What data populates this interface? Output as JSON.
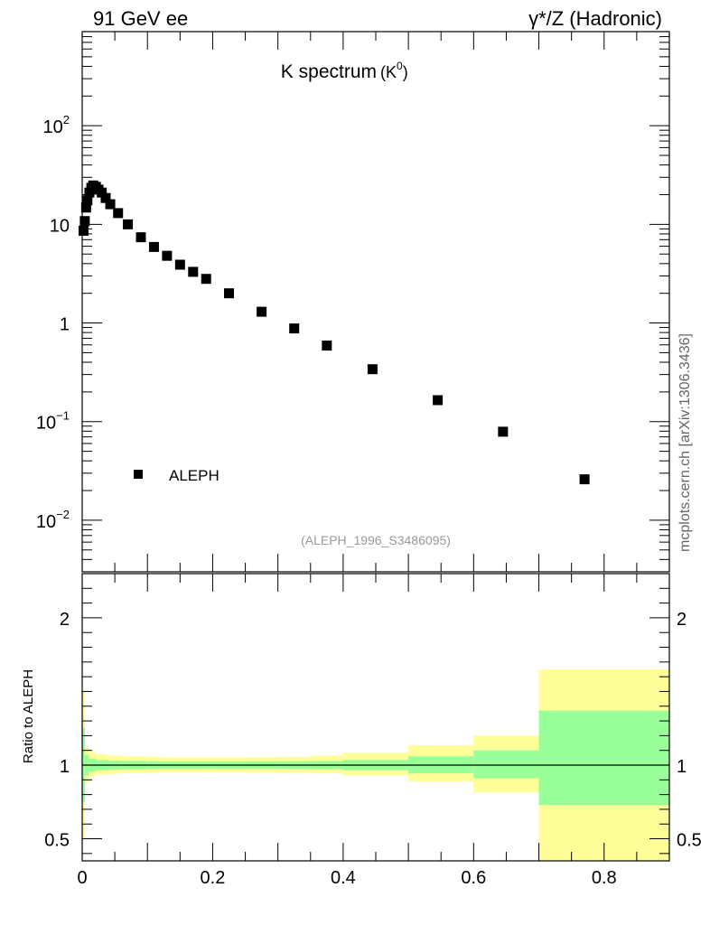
{
  "header": {
    "left": "91 GeV ee",
    "right": "γ*/Z (Hadronic)"
  },
  "side_label": "mcplots.cern.ch [arXiv:1306.3436]",
  "chart_data": [
    {
      "type": "scatter",
      "title": "K spectrum",
      "title_sub": "(K",
      "title_sup": "0",
      "title_close": ")",
      "yscale": "log",
      "xlim": [
        0,
        0.9
      ],
      "ylim": [
        0.003,
        900
      ],
      "yticks": [
        {
          "value": 0.01,
          "base": "10",
          "exp": "−2"
        },
        {
          "value": 0.1,
          "base": "10",
          "exp": "−1"
        },
        {
          "value": 1,
          "base": "1",
          "exp": ""
        },
        {
          "value": 10,
          "base": "10",
          "exp": ""
        },
        {
          "value": 100,
          "base": "10",
          "exp": "2"
        }
      ],
      "legend": {
        "label": "ALEPH",
        "position": "bottom-left"
      },
      "watermark": "(ALEPH_1996_S3486095)",
      "series": [
        {
          "name": "ALEPH",
          "marker": "square",
          "color": "#000000",
          "points": [
            {
              "x": 0.002,
              "y": 8.6
            },
            {
              "x": 0.004,
              "y": 10.8
            },
            {
              "x": 0.006,
              "y": 14.8
            },
            {
              "x": 0.008,
              "y": 17.5
            },
            {
              "x": 0.011,
              "y": 21.0
            },
            {
              "x": 0.014,
              "y": 23.5
            },
            {
              "x": 0.017,
              "y": 24.8
            },
            {
              "x": 0.021,
              "y": 24.0
            },
            {
              "x": 0.025,
              "y": 22.5
            },
            {
              "x": 0.03,
              "y": 21.0
            },
            {
              "x": 0.036,
              "y": 18.5
            },
            {
              "x": 0.043,
              "y": 16.0
            },
            {
              "x": 0.055,
              "y": 13.0
            },
            {
              "x": 0.07,
              "y": 10.0
            },
            {
              "x": 0.09,
              "y": 7.4
            },
            {
              "x": 0.11,
              "y": 5.9
            },
            {
              "x": 0.13,
              "y": 4.8
            },
            {
              "x": 0.15,
              "y": 3.9
            },
            {
              "x": 0.17,
              "y": 3.3
            },
            {
              "x": 0.19,
              "y": 2.8
            },
            {
              "x": 0.225,
              "y": 2.0
            },
            {
              "x": 0.275,
              "y": 1.3
            },
            {
              "x": 0.325,
              "y": 0.88
            },
            {
              "x": 0.375,
              "y": 0.59
            },
            {
              "x": 0.445,
              "y": 0.34
            },
            {
              "x": 0.545,
              "y": 0.165
            },
            {
              "x": 0.645,
              "y": 0.079
            },
            {
              "x": 0.77,
              "y": 0.026
            }
          ]
        }
      ]
    },
    {
      "type": "area",
      "ylabel": "Ratio to ALEPH",
      "xlim": [
        0,
        0.9
      ],
      "ylim": [
        0.35,
        2.3
      ],
      "yticks": [
        0.5,
        1,
        2
      ],
      "ytick_labels": [
        "0.5",
        "1",
        "2"
      ],
      "xticks": [
        0,
        0.2,
        0.4,
        0.6,
        0.8
      ],
      "xtick_labels": [
        "0",
        "0.2",
        "0.4",
        "0.6",
        "0.8"
      ],
      "reference_line": 1,
      "band_colors": {
        "inner": "#99ff99",
        "outer": "#ffff99"
      },
      "bands": [
        {
          "x0": 0.0,
          "x1": 0.004,
          "inner": [
            0.75,
            1.25
          ],
          "outer": [
            0.5,
            1.5
          ]
        },
        {
          "x0": 0.004,
          "x1": 0.01,
          "inner": [
            0.93,
            1.07
          ],
          "outer": [
            0.88,
            1.12
          ]
        },
        {
          "x0": 0.01,
          "x1": 0.02,
          "inner": [
            0.955,
            1.045
          ],
          "outer": [
            0.92,
            1.09
          ]
        },
        {
          "x0": 0.02,
          "x1": 0.04,
          "inner": [
            0.965,
            1.035
          ],
          "outer": [
            0.935,
            1.075
          ]
        },
        {
          "x0": 0.04,
          "x1": 0.06,
          "inner": [
            0.97,
            1.03
          ],
          "outer": [
            0.94,
            1.065
          ]
        },
        {
          "x0": 0.06,
          "x1": 0.1,
          "inner": [
            0.972,
            1.028
          ],
          "outer": [
            0.945,
            1.06
          ]
        },
        {
          "x0": 0.1,
          "x1": 0.12,
          "inner": [
            0.974,
            1.026
          ],
          "outer": [
            0.948,
            1.057
          ]
        },
        {
          "x0": 0.12,
          "x1": 0.2,
          "inner": [
            0.976,
            1.024
          ],
          "outer": [
            0.952,
            1.052
          ]
        },
        {
          "x0": 0.2,
          "x1": 0.25,
          "inner": [
            0.976,
            1.024
          ],
          "outer": [
            0.952,
            1.052
          ]
        },
        {
          "x0": 0.25,
          "x1": 0.3,
          "inner": [
            0.975,
            1.025
          ],
          "outer": [
            0.95,
            1.054
          ]
        },
        {
          "x0": 0.3,
          "x1": 0.35,
          "inner": [
            0.974,
            1.026
          ],
          "outer": [
            0.948,
            1.057
          ]
        },
        {
          "x0": 0.35,
          "x1": 0.4,
          "inner": [
            0.972,
            1.028
          ],
          "outer": [
            0.944,
            1.064
          ]
        },
        {
          "x0": 0.4,
          "x1": 0.5,
          "inner": [
            0.965,
            1.035
          ],
          "outer": [
            0.93,
            1.085
          ]
        },
        {
          "x0": 0.5,
          "x1": 0.6,
          "inner": [
            0.945,
            1.06
          ],
          "outer": [
            0.89,
            1.135
          ]
        },
        {
          "x0": 0.6,
          "x1": 0.7,
          "inner": [
            0.91,
            1.1
          ],
          "outer": [
            0.815,
            1.2
          ]
        },
        {
          "x0": 0.7,
          "x1": 0.9,
          "inner": [
            0.73,
            1.37
          ],
          "outer": [
            0.35,
            1.65
          ]
        }
      ]
    }
  ]
}
